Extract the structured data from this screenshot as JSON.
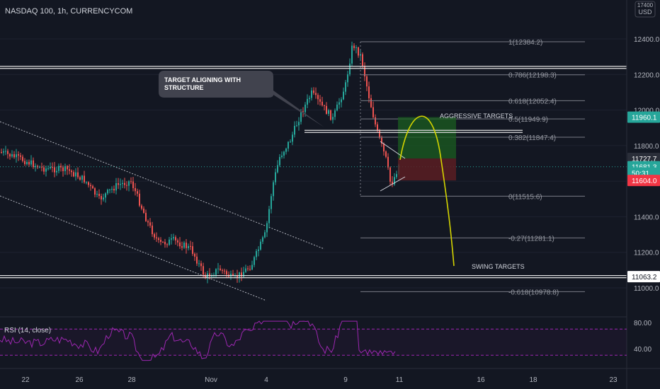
{
  "header": {
    "symbol_text": "NASDAQ 100, 1h, CURRENCYCOM"
  },
  "currency_badge": {
    "line1": "17400",
    "line2": "USD"
  },
  "theme": {
    "background": "#131722",
    "grid": "#1e2230",
    "up": "#26a69a",
    "down": "#ef5350",
    "line": "#c8c8c8",
    "fib": "#787b86",
    "yellow": "#d4d400",
    "rsi": "#9c27b0",
    "last_price": "#26a69a",
    "stop_price": "#f23645",
    "target_green": "#1b5e20",
    "target_red": "#5b1d22"
  },
  "chart_data": {
    "type": "candlestick",
    "title": "NASDAQ 100, 1h, CURRENCYCOM",
    "y_ticks": [
      12400.0,
      12200.0,
      12000.0,
      11800.0,
      11600.0,
      11400.0,
      11200.0,
      11000.0
    ],
    "y_tick_labels": [
      "12400.0",
      "12200.0",
      "12000.0",
      "11800.0",
      "",
      "11400.0",
      "11200.0",
      "11000.0"
    ],
    "x_ticks": [
      "22",
      "26",
      "28",
      "Nov",
      "4",
      "9",
      "11",
      "16",
      "18",
      "23"
    ],
    "price_labels": [
      {
        "label": "11960.1",
        "value": 11960.1,
        "color": "#26a69a"
      },
      {
        "label": "11727.7",
        "value": 11727.7,
        "color": "#2a2e39"
      },
      {
        "label": "11681.3",
        "value": 11681.3,
        "color": "#26a69a"
      },
      {
        "label": "50:31",
        "value": 11646.0,
        "color": "#26a69a"
      },
      {
        "label": "11604.0",
        "value": 11604.0,
        "color": "#f23645"
      },
      {
        "label": "11063.2",
        "value": 11063.2,
        "color": "#ffffff"
      }
    ],
    "horizontal_levels": [
      12240,
      11063.2
    ],
    "fibonacci": [
      {
        "label": "1(12384.2)",
        "value": 12384.2
      },
      {
        "label": "0.786(12198.3)",
        "value": 12198.3
      },
      {
        "label": "0.618(12052.4)",
        "value": 12052.4
      },
      {
        "label": "0.5(11949.9)",
        "value": 11949.9
      },
      {
        "label": "0.382(11847.4)",
        "value": 11847.4
      },
      {
        "label": "0(11515.6)",
        "value": 11515.6
      },
      {
        "label": "-0.27(11281.1)",
        "value": 11281.1
      },
      {
        "label": "-0.618(10978.8)",
        "value": 10978.8
      }
    ],
    "annotations": {
      "callout": "TARGET ALIGNING WITH STRUCTURE",
      "aggressive": "AGGRESSIVE TARGETS",
      "swing": "SWING TARGETS"
    },
    "rsi": {
      "label": "RSI (14, close)",
      "ticks": [
        "80.00",
        "40.00"
      ],
      "bands": [
        70,
        30
      ]
    }
  }
}
